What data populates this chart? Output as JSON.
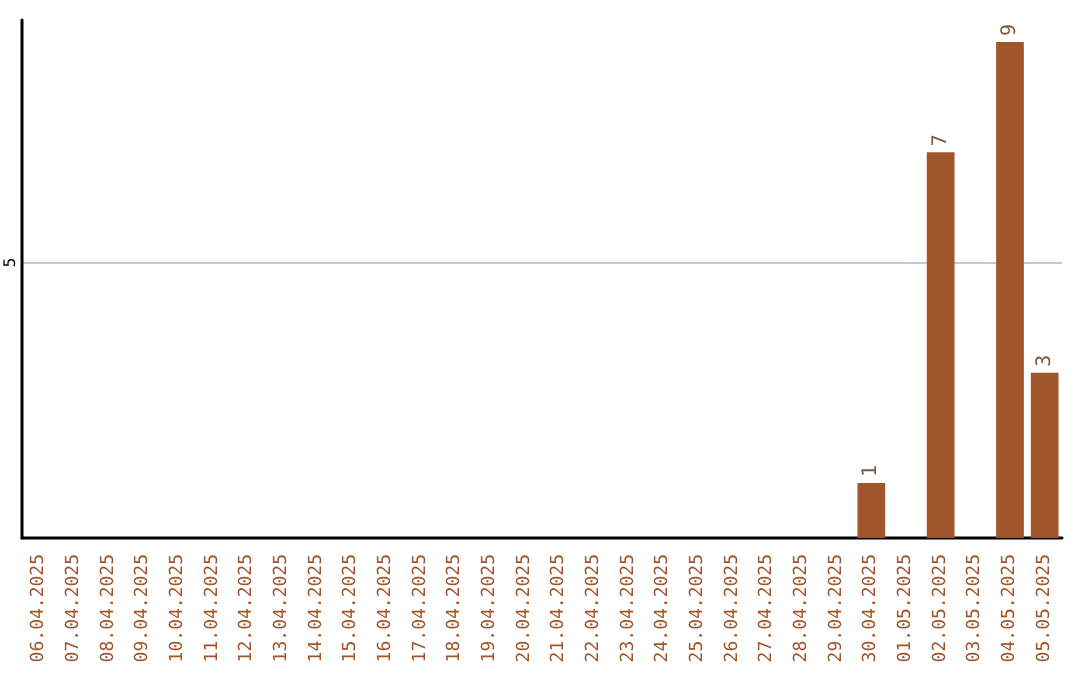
{
  "chart_data": {
    "type": "bar",
    "categories": [
      "06.04.2025",
      "07.04.2025",
      "08.04.2025",
      "09.04.2025",
      "10.04.2025",
      "11.04.2025",
      "12.04.2025",
      "13.04.2025",
      "14.04.2025",
      "15.04.2025",
      "16.04.2025",
      "17.04.2025",
      "18.04.2025",
      "19.04.2025",
      "20.04.2025",
      "21.04.2025",
      "22.04.2025",
      "23.04.2025",
      "24.04.2025",
      "25.04.2025",
      "26.04.2025",
      "27.04.2025",
      "28.04.2025",
      "29.04.2025",
      "30.04.2025",
      "01.05.2025",
      "02.05.2025",
      "03.05.2025",
      "04.05.2025",
      "05.05.2025"
    ],
    "values": [
      null,
      null,
      null,
      null,
      null,
      null,
      null,
      null,
      null,
      null,
      null,
      null,
      null,
      null,
      null,
      null,
      null,
      null,
      null,
      null,
      null,
      null,
      null,
      null,
      1,
      null,
      7,
      null,
      9,
      3
    ],
    "value_labels": [
      null,
      null,
      null,
      null,
      null,
      null,
      null,
      null,
      null,
      null,
      null,
      null,
      null,
      null,
      null,
      null,
      null,
      null,
      null,
      null,
      null,
      null,
      null,
      null,
      "1",
      null,
      "7",
      null,
      "9",
      "3"
    ],
    "color": "#a0562a",
    "ylim": [
      0,
      9.4
    ],
    "yticks": [
      5
    ],
    "grid": "y"
  }
}
